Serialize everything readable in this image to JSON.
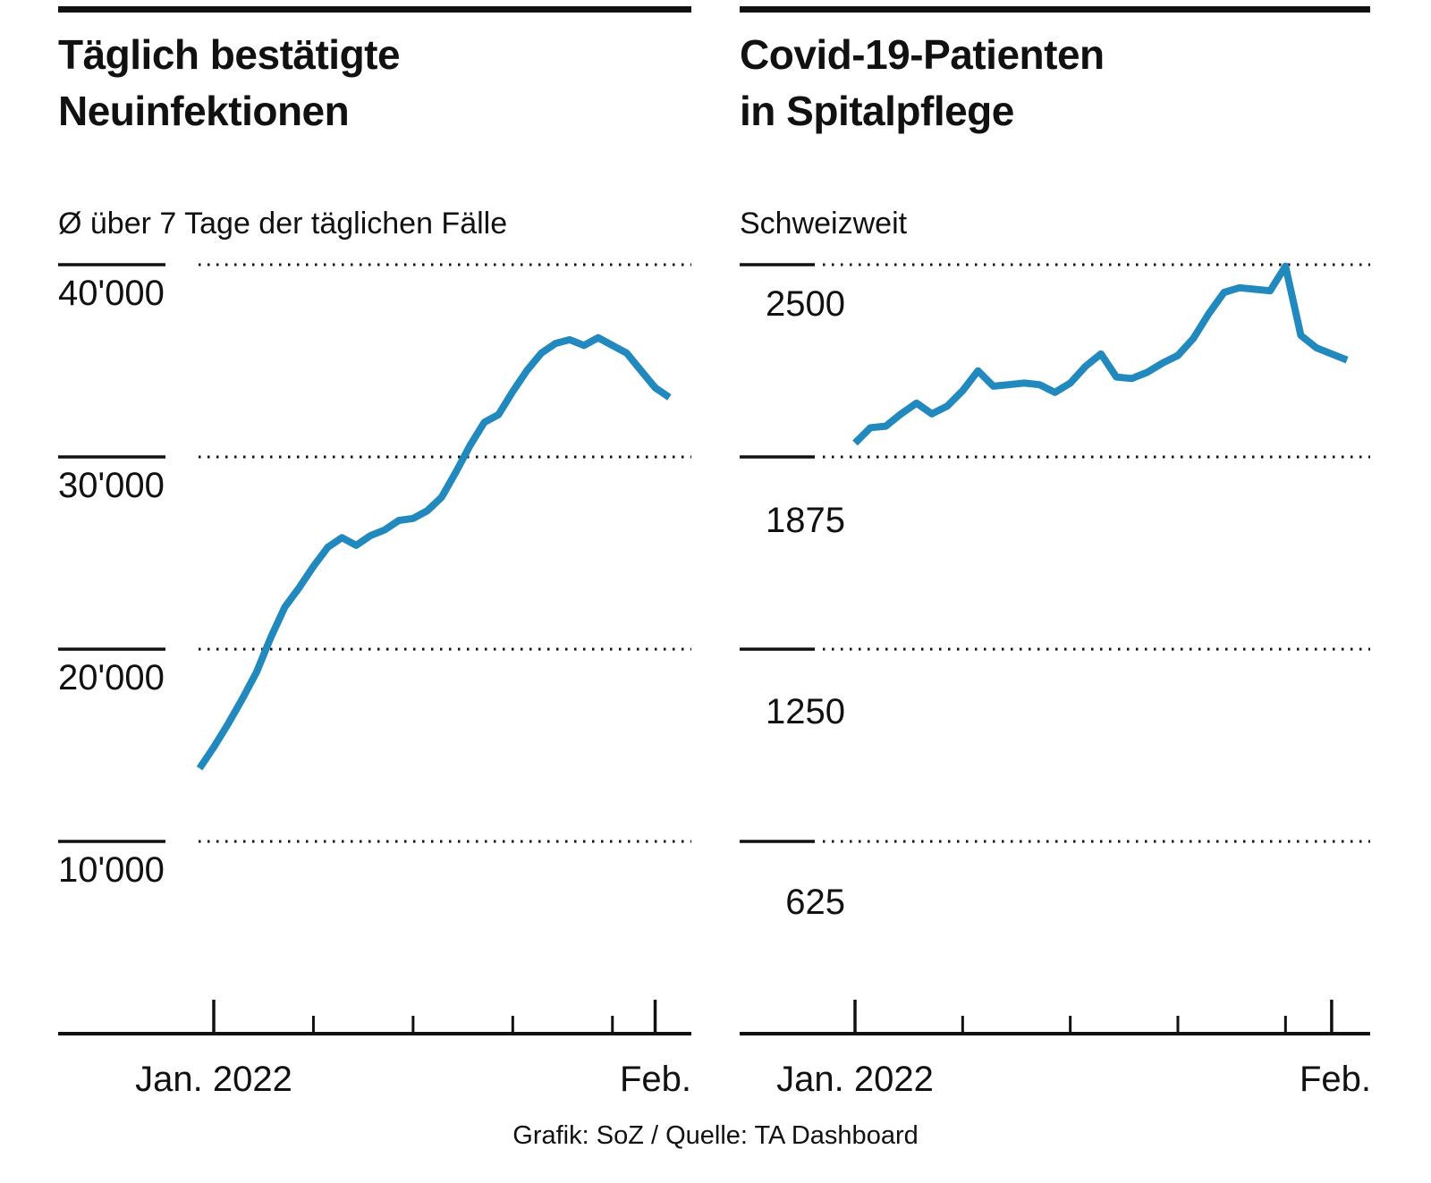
{
  "page": {
    "background": "#ffffff",
    "footer_text": "Grafik: SoZ / Quelle: TA Dashboard"
  },
  "colors": {
    "line": "#2189be",
    "ink": "#111111"
  },
  "charts": [
    {
      "title_line1": "Täglich bestätigte",
      "title_line2": "Neuinfektionen",
      "subtitle": "Ø über 7 Tage der täglichen Fälle",
      "y_labels": [
        "40'000",
        "30'000",
        "20'000",
        "10'000"
      ],
      "x_label_left": "Jan. 2022",
      "x_label_right": "Feb."
    },
    {
      "title_line1": "Covid-19-Patienten",
      "title_line2": "in Spitalpflege",
      "subtitle": "Schweizweit",
      "y_labels": [
        "2500",
        "1875",
        "1250",
        "625"
      ],
      "x_label_left": "Jan. 2022",
      "x_label_right": "Feb."
    }
  ],
  "chart_data": [
    {
      "type": "line",
      "title": "Täglich bestätigte Neuinfektionen",
      "subtitle": "Ø über 7 Tage der täglichen Fälle",
      "x_unit": "Tag",
      "x_start": "31. Dez. 2021",
      "x_end": "2. Feb. 2022",
      "start_day_offset": -1,
      "x_tick_labels": [
        "Jan. 2022",
        "Feb."
      ],
      "y_ticks": [
        40000,
        30000,
        20000,
        10000
      ],
      "ylim": [
        0,
        41200
      ],
      "grid": "dotted-horizontal",
      "legend": "none",
      "line_color": "#2189be",
      "values": [
        13800,
        14900,
        16100,
        17400,
        18800,
        20600,
        22200,
        23200,
        24300,
        25300,
        25800,
        25400,
        25900,
        26200,
        26700,
        26800,
        27200,
        27900,
        29200,
        30600,
        31800,
        32200,
        33400,
        34500,
        35400,
        35900,
        36100,
        35800,
        36200,
        35800,
        35400,
        34500,
        33600,
        33100
      ]
    },
    {
      "type": "line",
      "title": "Covid-19-Patienten in Spitalpflege",
      "subtitle": "Schweizweit",
      "x_unit": "Tag",
      "x_start": "1. Jan. 2022",
      "x_end": "2. Feb. 2022",
      "start_day_offset": 0,
      "x_tick_labels": [
        "Jan. 2022",
        "Feb."
      ],
      "y_ticks": [
        2500,
        1875,
        1250,
        625
      ],
      "ylim": [
        0,
        2575
      ],
      "grid": "dotted-horizontal",
      "legend": "none",
      "line_color": "#2189be",
      "values": [
        1920,
        1970,
        1975,
        2015,
        2050,
        2015,
        2040,
        2090,
        2155,
        2105,
        2110,
        2115,
        2110,
        2085,
        2115,
        2170,
        2210,
        2135,
        2130,
        2150,
        2180,
        2205,
        2260,
        2340,
        2410,
        2425,
        2420,
        2415,
        2495,
        2270,
        2230,
        2210,
        2190
      ]
    }
  ]
}
